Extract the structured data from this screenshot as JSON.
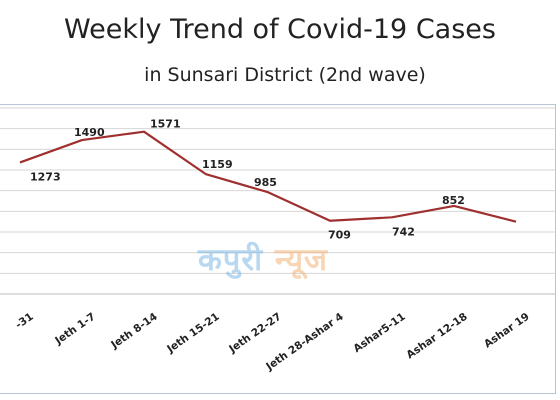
{
  "chart_data": {
    "type": "line",
    "title": "Weekly Trend of Covid-19 Cases",
    "subtitle": "in Sunsari District (2nd wave)",
    "categories": [
      "-31",
      "Jeth 1-7",
      "Jeth 8-14",
      "Jeth 15-21",
      "Jeth  22-27",
      "Jeth 28-Ashar 4",
      "Ashar5-11",
      "Ashar 12-18",
      "Ashar 19"
    ],
    "series": [
      {
        "values": [
          1273,
          1490,
          1571,
          1159,
          985,
          709,
          742,
          852,
          700
        ]
      }
    ],
    "data_labels": [
      "1273",
      "1490",
      "1571",
      "1159",
      "985",
      "709",
      "742",
      "852",
      ""
    ],
    "ylim": [
      0,
      1800
    ],
    "grid": true,
    "line_color": "#a03030"
  },
  "watermark": {
    "part1": "कपुरी",
    "part2": "न्यूज"
  }
}
